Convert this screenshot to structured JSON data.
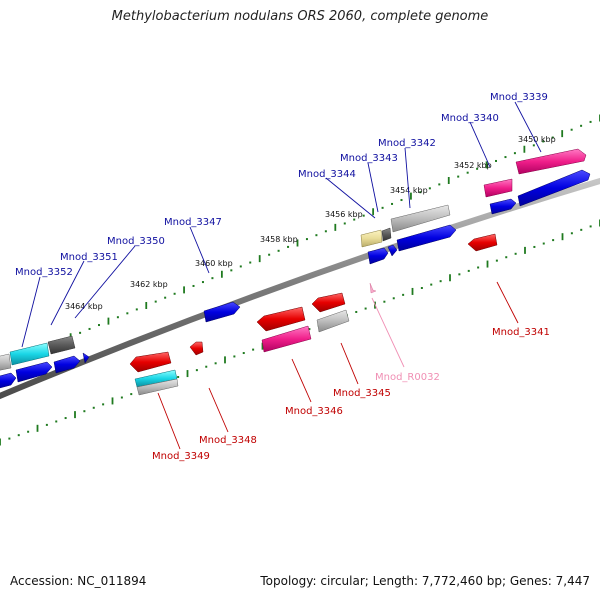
{
  "title": "Methylobacterium nodulans ORS 2060, complete genome",
  "footer": {
    "accession": "Accession: NC_011894",
    "stats": "Topology: circular; Length: 7,772,460 bp; Genes: 7,447"
  },
  "colors": {
    "backbone": "#8a8a8a",
    "tick": "#1f7a1f",
    "forward_label": "#1010a0",
    "reverse_label": "#c00000",
    "rna_label": "#f08fb4"
  },
  "kbp_labels": [
    "3450 kbp",
    "3452 kbp",
    "3454 kbp",
    "3456 kbp",
    "3458 kbp",
    "3460 kbp",
    "3462 kbp",
    "3464 kbp"
  ],
  "forward_genes": [
    "Mnod_3339",
    "Mnod_3340",
    "Mnod_3342",
    "Mnod_3343",
    "Mnod_3344",
    "Mnod_3347",
    "Mnod_3350",
    "Mnod_3351",
    "Mnod_3352"
  ],
  "reverse_genes": [
    "Mnod_3341",
    "Mnod_3345",
    "Mnod_3346",
    "Mnod_3348",
    "Mnod_3349"
  ],
  "rna_genes": [
    "Mnod_R0032"
  ]
}
